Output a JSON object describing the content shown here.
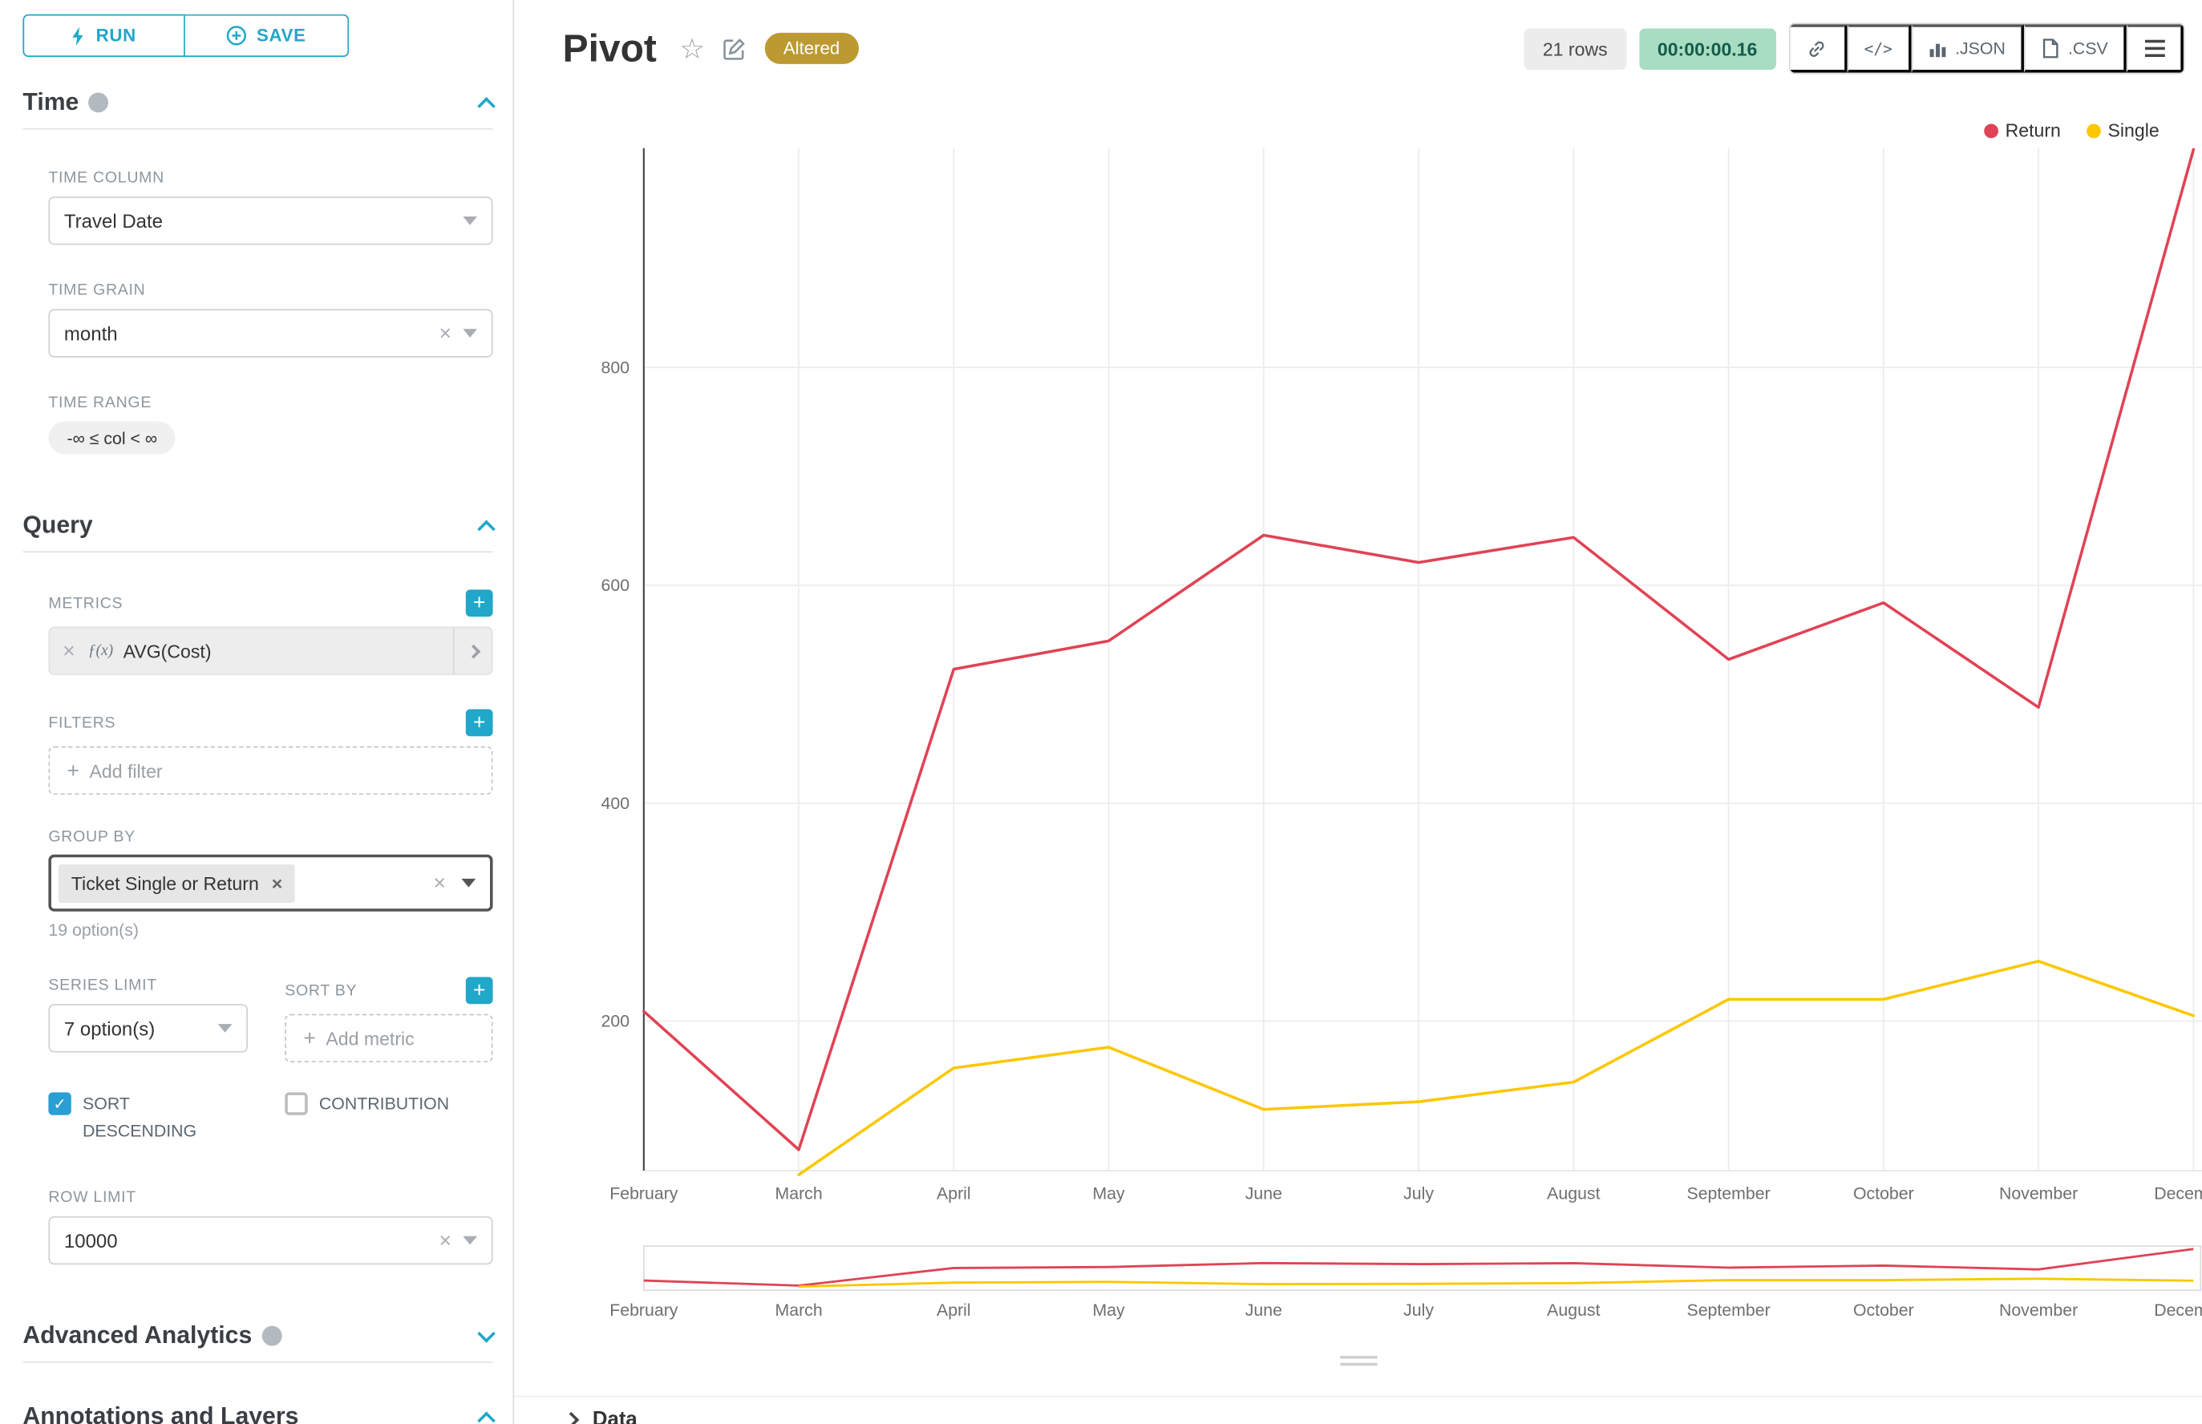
{
  "colors": {
    "accent": "#20a7c9",
    "series_return": "#e04355",
    "series_single": "#fcc700",
    "altered_badge": "#bd9a31",
    "timer_bg": "#a8dcc3",
    "timer_text": "#145c4b"
  },
  "sidebar": {
    "run_label": "RUN",
    "save_label": "SAVE",
    "time": {
      "title": "Time",
      "time_column_label": "TIME COLUMN",
      "time_column_value": "Travel Date",
      "time_grain_label": "TIME GRAIN",
      "time_grain_value": "month",
      "time_range_label": "TIME RANGE",
      "time_range_value": "-∞ ≤ col < ∞"
    },
    "query": {
      "title": "Query",
      "metrics_label": "METRICS",
      "metric_prefix": "ƒ(x)",
      "metric_value": "AVG(Cost)",
      "filters_label": "FILTERS",
      "add_filter_placeholder": "Add filter",
      "group_by_label": "GROUP BY",
      "group_by_value": "Ticket Single or Return",
      "group_by_options_hint": "19 option(s)",
      "series_limit_label": "SERIES LIMIT",
      "series_limit_value": "7 option(s)",
      "sort_by_label": "SORT BY",
      "add_metric_placeholder": "Add metric",
      "sort_descending_label": "SORT DESCENDING",
      "contribution_label": "CONTRIBUTION",
      "row_limit_label": "ROW LIMIT",
      "row_limit_value": "10000"
    },
    "advanced_analytics_title": "Advanced Analytics",
    "annotations_title": "Annotations and Layers"
  },
  "header": {
    "title": "Pivot",
    "altered_badge": "Altered",
    "row_count": "21 rows",
    "timer": "00:00:00.16",
    "json_label": ".JSON",
    "csv_label": ".CSV"
  },
  "data_panel": {
    "title": "Data"
  },
  "chart_data": {
    "type": "line",
    "title": "Pivot",
    "xlabel": "",
    "ylabel": "",
    "categories": [
      "February",
      "March",
      "April",
      "May",
      "June",
      "July",
      "August",
      "September",
      "October",
      "November",
      "December"
    ],
    "series": [
      {
        "name": "Return",
        "color": "#e04355",
        "values": [
          209,
          82,
          523,
          549,
          646,
          621,
          644,
          532,
          584,
          488,
          1000
        ]
      },
      {
        "name": "Single",
        "color": "#fcc700",
        "values": [
          null,
          59,
          157,
          176,
          119,
          126,
          144,
          220,
          220,
          255,
          205
        ]
      }
    ],
    "yticks": [
      200,
      400,
      600,
      800
    ],
    "ylim": [
      0,
      1000
    ],
    "grid": true,
    "legend_position": "top-right",
    "has_range_selector": true
  }
}
